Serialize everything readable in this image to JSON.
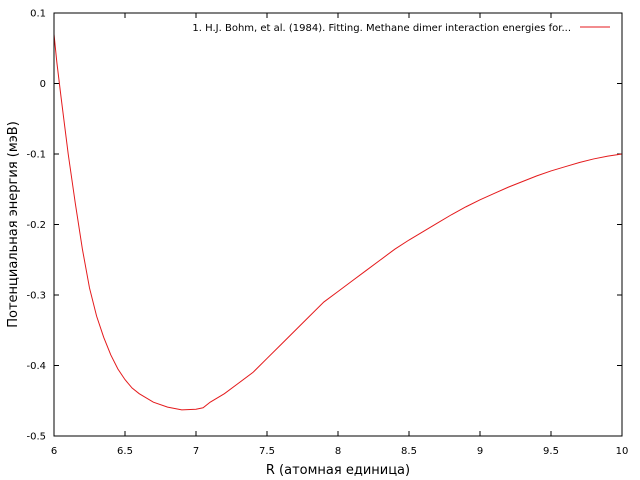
{
  "chart_data": {
    "type": "line",
    "title": "",
    "xlabel": "R (атомная единица)",
    "ylabel": "Потенциальная энергия (мэВ)",
    "xlim": [
      6,
      10
    ],
    "ylim": [
      -0.5,
      0.1
    ],
    "x_ticks": [
      "6",
      "6.5",
      "7",
      "7.5",
      "8",
      "8.5",
      "9",
      "9.5",
      "10"
    ],
    "y_ticks": [
      "0.1",
      "0",
      "-0.1",
      "-0.2",
      "-0.3",
      "-0.4",
      "-0.5"
    ],
    "grid": false,
    "legend_position": "top-right",
    "series": [
      {
        "name": "1. H.J. Bohm, et al. (1984). Fitting. Methane dimer interaction energies for...",
        "color": "#e41a1c",
        "x": [
          6.0,
          6.02,
          6.05,
          6.1,
          6.15,
          6.2,
          6.25,
          6.3,
          6.35,
          6.4,
          6.45,
          6.5,
          6.55,
          6.6,
          6.7,
          6.8,
          6.9,
          7.0,
          7.05,
          7.1,
          7.2,
          7.3,
          7.4,
          7.5,
          7.6,
          7.7,
          7.8,
          7.9,
          8.0,
          8.1,
          8.2,
          8.3,
          8.4,
          8.5,
          8.6,
          8.7,
          8.8,
          8.9,
          9.0,
          9.1,
          9.2,
          9.3,
          9.4,
          9.5,
          9.6,
          9.7,
          9.8,
          9.9,
          10.0
        ],
        "y": [
          0.07,
          0.03,
          -0.02,
          -0.1,
          -0.17,
          -0.235,
          -0.29,
          -0.33,
          -0.36,
          -0.385,
          -0.405,
          -0.42,
          -0.432,
          -0.44,
          -0.452,
          -0.459,
          -0.463,
          -0.462,
          -0.46,
          -0.452,
          -0.44,
          -0.425,
          -0.41,
          -0.39,
          -0.37,
          -0.35,
          -0.33,
          -0.31,
          -0.295,
          -0.28,
          -0.265,
          -0.25,
          -0.235,
          -0.222,
          -0.21,
          -0.198,
          -0.186,
          -0.175,
          -0.165,
          -0.156,
          -0.147,
          -0.139,
          -0.131,
          -0.124,
          -0.118,
          -0.112,
          -0.107,
          -0.103,
          -0.1
        ]
      }
    ]
  }
}
